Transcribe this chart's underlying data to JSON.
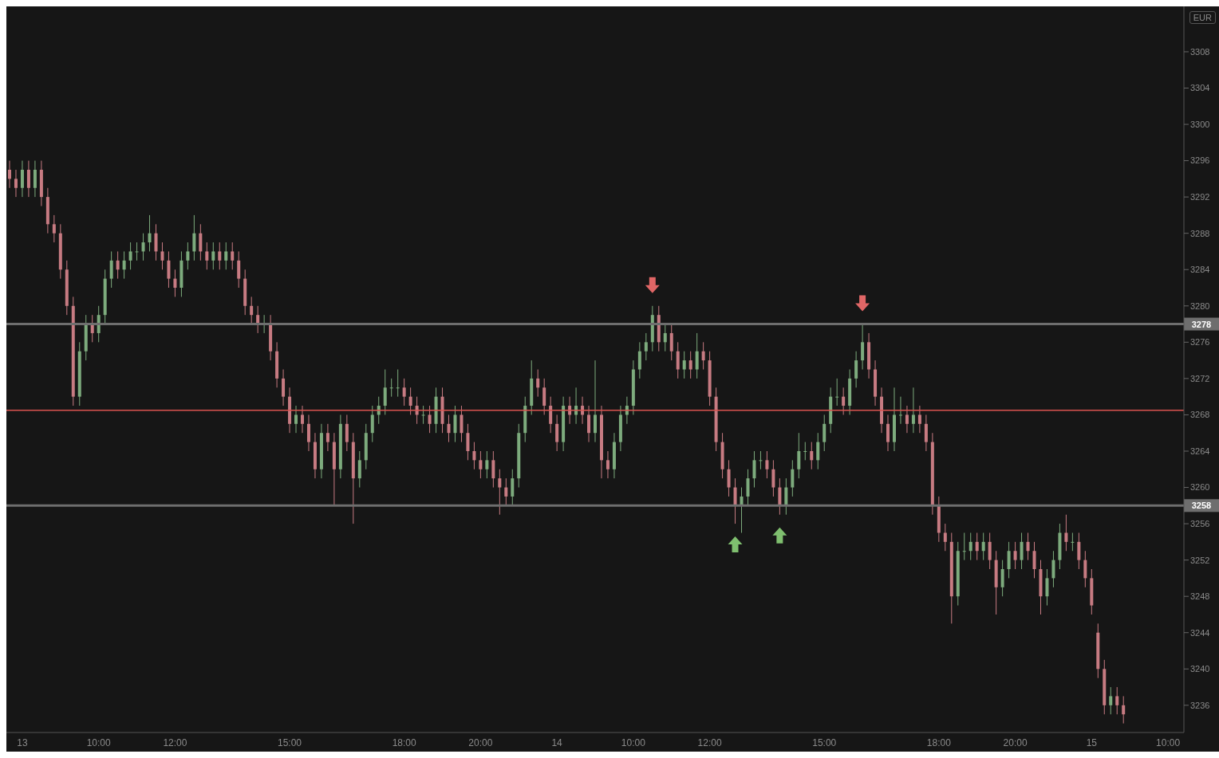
{
  "chart_data": {
    "type": "candlestick",
    "categories": [
      null,
      null,
      "13",
      null,
      null,
      null,
      null,
      null,
      null,
      null,
      null,
      null,
      null,
      null,
      "10:00",
      null,
      null,
      null,
      null,
      null,
      null,
      null,
      null,
      null,
      null,
      null,
      "12:00",
      null,
      null,
      null,
      null,
      null,
      null,
      null,
      null,
      null,
      null,
      null,
      null,
      null,
      null,
      null,
      null,
      null,
      "15:00",
      null,
      null,
      null,
      null,
      null,
      null,
      null,
      null,
      null,
      null,
      null,
      null,
      null,
      null,
      null,
      null,
      null,
      "18:00",
      null,
      null,
      null,
      null,
      null,
      null,
      null,
      null,
      null,
      null,
      null,
      "20:00",
      null,
      null,
      null,
      null,
      null,
      null,
      null,
      null,
      null,
      null,
      null,
      "14",
      null,
      null,
      null,
      null,
      null,
      null,
      null,
      null,
      null,
      null,
      null,
      "10:00",
      null,
      null,
      null,
      null,
      null,
      null,
      null,
      null,
      null,
      null,
      null,
      "12:00",
      null,
      null,
      null,
      null,
      null,
      null,
      null,
      null,
      null,
      null,
      null,
      null,
      null,
      null,
      null,
      null,
      null,
      "15:00",
      null,
      null,
      null,
      null,
      null,
      null,
      null,
      null,
      null,
      null,
      null,
      null,
      null,
      null,
      null,
      null,
      null,
      "18:00",
      null,
      null,
      null,
      null,
      null,
      null,
      null,
      null,
      null,
      null,
      null,
      "20:00",
      null,
      null,
      null,
      null,
      null,
      null,
      null,
      null,
      null,
      null,
      null,
      "15",
      null,
      null,
      null,
      null,
      null,
      null,
      null,
      null,
      null,
      null,
      null,
      "10:00",
      null,
      null
    ],
    "ohlc": [
      [
        3295,
        3296,
        3293,
        3294
      ],
      [
        3294,
        3295,
        3292,
        3293
      ],
      [
        3293,
        3296,
        3292,
        3295
      ],
      [
        3295,
        3296,
        3292,
        3293
      ],
      [
        3293,
        3296,
        3292,
        3295
      ],
      [
        3295,
        3296,
        3291,
        3292
      ],
      [
        3292,
        3293,
        3288,
        3289
      ],
      [
        3289,
        3290,
        3287,
        3288
      ],
      [
        3288,
        3289,
        3283,
        3284
      ],
      [
        3284,
        3285,
        3279,
        3280
      ],
      [
        3280,
        3281,
        3269,
        3270
      ],
      [
        3270,
        3276,
        3269,
        3275
      ],
      [
        3275,
        3279,
        3274,
        3278
      ],
      [
        3278,
        3279,
        3276,
        3277
      ],
      [
        3277,
        3280,
        3276,
        3279
      ],
      [
        3279,
        3284,
        3278,
        3283
      ],
      [
        3283,
        3286,
        3282,
        3285
      ],
      [
        3285,
        3286,
        3283,
        3284
      ],
      [
        3284,
        3286,
        3283,
        3285
      ],
      [
        3285,
        3287,
        3284,
        3286
      ],
      [
        3286,
        3287,
        3285,
        3286
      ],
      [
        3286,
        3288,
        3285,
        3287
      ],
      [
        3287,
        3290,
        3286,
        3288
      ],
      [
        3288,
        3289,
        3285,
        3286
      ],
      [
        3286,
        3287,
        3284,
        3285
      ],
      [
        3285,
        3286,
        3282,
        3283
      ],
      [
        3283,
        3284,
        3281,
        3282
      ],
      [
        3282,
        3286,
        3281,
        3285
      ],
      [
        3285,
        3287,
        3284,
        3286
      ],
      [
        3286,
        3290,
        3285,
        3288
      ],
      [
        3288,
        3289,
        3285,
        3286
      ],
      [
        3286,
        3287,
        3284,
        3285
      ],
      [
        3285,
        3287,
        3284,
        3286
      ],
      [
        3286,
        3287,
        3284,
        3285
      ],
      [
        3285,
        3287,
        3284,
        3286
      ],
      [
        3286,
        3287,
        3284,
        3285
      ],
      [
        3285,
        3286,
        3282,
        3283
      ],
      [
        3283,
        3284,
        3279,
        3280
      ],
      [
        3280,
        3281,
        3278,
        3279
      ],
      [
        3279,
        3280,
        3277,
        3278
      ],
      [
        3278,
        3279,
        3277,
        3278
      ],
      [
        3278,
        3279,
        3274,
        3275
      ],
      [
        3275,
        3276,
        3271,
        3272
      ],
      [
        3272,
        3273,
        3269,
        3270
      ],
      [
        3270,
        3271,
        3266,
        3267
      ],
      [
        3267,
        3269,
        3266,
        3268
      ],
      [
        3268,
        3269,
        3266,
        3267
      ],
      [
        3267,
        3268,
        3264,
        3265
      ],
      [
        3265,
        3266,
        3261,
        3262
      ],
      [
        3262,
        3267,
        3261,
        3266
      ],
      [
        3266,
        3267,
        3264,
        3265
      ],
      [
        3265,
        3266,
        3258,
        3262
      ],
      [
        3262,
        3268,
        3261,
        3267
      ],
      [
        3267,
        3268,
        3264,
        3265
      ],
      [
        3265,
        3266,
        3256,
        3261
      ],
      [
        3261,
        3264,
        3260,
        3263
      ],
      [
        3263,
        3267,
        3262,
        3266
      ],
      [
        3266,
        3269,
        3265,
        3268
      ],
      [
        3268,
        3270,
        3267,
        3269
      ],
      [
        3269,
        3273,
        3268,
        3271
      ],
      [
        3271,
        3272,
        3270,
        3271
      ],
      [
        3271,
        3273,
        3270,
        3271
      ],
      [
        3271,
        3272,
        3269,
        3270
      ],
      [
        3270,
        3271,
        3268,
        3269
      ],
      [
        3269,
        3270,
        3267,
        3268
      ],
      [
        3268,
        3269,
        3267,
        3268
      ],
      [
        3268,
        3269,
        3266,
        3267
      ],
      [
        3267,
        3271,
        3266,
        3270
      ],
      [
        3270,
        3271,
        3266,
        3267
      ],
      [
        3267,
        3268,
        3265,
        3266
      ],
      [
        3266,
        3269,
        3265,
        3268
      ],
      [
        3268,
        3269,
        3265,
        3266
      ],
      [
        3266,
        3267,
        3263,
        3264
      ],
      [
        3264,
        3265,
        3262,
        3263
      ],
      [
        3263,
        3264,
        3261,
        3262
      ],
      [
        3262,
        3264,
        3261,
        3263
      ],
      [
        3263,
        3264,
        3260,
        3261
      ],
      [
        3261,
        3262,
        3257,
        3260
      ],
      [
        3260,
        3261,
        3258,
        3259
      ],
      [
        3259,
        3262,
        3258,
        3261
      ],
      [
        3261,
        3267,
        3260,
        3266
      ],
      [
        3266,
        3270,
        3265,
        3269
      ],
      [
        3269,
        3274,
        3268,
        3272
      ],
      [
        3272,
        3273,
        3270,
        3271
      ],
      [
        3271,
        3272,
        3268,
        3269
      ],
      [
        3269,
        3270,
        3266,
        3267
      ],
      [
        3267,
        3268,
        3264,
        3265
      ],
      [
        3265,
        3270,
        3264,
        3269
      ],
      [
        3269,
        3270,
        3267,
        3268
      ],
      [
        3268,
        3271,
        3267,
        3269
      ],
      [
        3269,
        3270,
        3267,
        3268
      ],
      [
        3268,
        3269,
        3265,
        3266
      ],
      [
        3266,
        3274,
        3265,
        3268
      ],
      [
        3268,
        3269,
        3261,
        3263
      ],
      [
        3263,
        3264,
        3261,
        3262
      ],
      [
        3262,
        3266,
        3261,
        3265
      ],
      [
        3265,
        3269,
        3264,
        3268
      ],
      [
        3268,
        3270,
        3267,
        3269
      ],
      [
        3269,
        3274,
        3268,
        3273
      ],
      [
        3273,
        3276,
        3272,
        3275
      ],
      [
        3275,
        3277,
        3274,
        3276
      ],
      [
        3276,
        3280,
        3275,
        3279
      ],
      [
        3279,
        3280,
        3275,
        3276
      ],
      [
        3276,
        3278,
        3275,
        3277
      ],
      [
        3277,
        3278,
        3274,
        3275
      ],
      [
        3275,
        3276,
        3272,
        3273
      ],
      [
        3273,
        3275,
        3272,
        3274
      ],
      [
        3274,
        3275,
        3272,
        3273
      ],
      [
        3273,
        3277,
        3272,
        3275
      ],
      [
        3275,
        3276,
        3273,
        3274
      ],
      [
        3274,
        3275,
        3269,
        3270
      ],
      [
        3270,
        3271,
        3264,
        3265
      ],
      [
        3265,
        3266,
        3261,
        3262
      ],
      [
        3262,
        3263,
        3259,
        3260
      ],
      [
        3260,
        3261,
        3256,
        3258
      ],
      [
        3258,
        3260,
        3255,
        3259
      ],
      [
        3259,
        3262,
        3258,
        3261
      ],
      [
        3261,
        3264,
        3260,
        3263
      ],
      [
        3263,
        3264,
        3262,
        3263
      ],
      [
        3263,
        3264,
        3261,
        3262
      ],
      [
        3262,
        3263,
        3259,
        3260
      ],
      [
        3260,
        3261,
        3257,
        3258
      ],
      [
        3258,
        3261,
        3257,
        3260
      ],
      [
        3260,
        3263,
        3259,
        3262
      ],
      [
        3262,
        3266,
        3261,
        3264
      ],
      [
        3264,
        3265,
        3263,
        3264
      ],
      [
        3264,
        3265,
        3262,
        3263
      ],
      [
        3263,
        3266,
        3262,
        3265
      ],
      [
        3265,
        3268,
        3264,
        3267
      ],
      [
        3267,
        3271,
        3266,
        3270
      ],
      [
        3270,
        3272,
        3269,
        3270
      ],
      [
        3270,
        3271,
        3268,
        3269
      ],
      [
        3269,
        3273,
        3268,
        3272
      ],
      [
        3272,
        3275,
        3271,
        3274
      ],
      [
        3274,
        3278,
        3273,
        3276
      ],
      [
        3276,
        3277,
        3272,
        3273
      ],
      [
        3273,
        3274,
        3269,
        3270
      ],
      [
        3270,
        3271,
        3266,
        3267
      ],
      [
        3267,
        3268,
        3264,
        3265
      ],
      [
        3265,
        3271,
        3264,
        3268
      ],
      [
        3268,
        3270,
        3267,
        3268
      ],
      [
        3268,
        3269,
        3266,
        3267
      ],
      [
        3267,
        3271,
        3266,
        3268
      ],
      [
        3268,
        3269,
        3266,
        3267
      ],
      [
        3267,
        3268,
        3264,
        3265
      ],
      [
        3265,
        3266,
        3257,
        3258
      ],
      [
        3258,
        3259,
        3254,
        3255
      ],
      [
        3255,
        3256,
        3253,
        3254
      ],
      [
        3254,
        3255,
        3245,
        3248
      ],
      [
        3248,
        3254,
        3247,
        3253
      ],
      [
        3253,
        3255,
        3252,
        3253
      ],
      [
        3253,
        3255,
        3252,
        3254
      ],
      [
        3254,
        3255,
        3252,
        3253
      ],
      [
        3253,
        3255,
        3252,
        3254
      ],
      [
        3254,
        3255,
        3251,
        3252
      ],
      [
        3252,
        3253,
        3246,
        3249
      ],
      [
        3249,
        3252,
        3248,
        3251
      ],
      [
        3251,
        3254,
        3250,
        3253
      ],
      [
        3253,
        3254,
        3251,
        3252
      ],
      [
        3252,
        3255,
        3251,
        3254
      ],
      [
        3254,
        3255,
        3252,
        3253
      ],
      [
        3253,
        3254,
        3250,
        3251
      ],
      [
        3251,
        3252,
        3246,
        3248
      ],
      [
        3248,
        3251,
        3247,
        3250
      ],
      [
        3250,
        3253,
        3249,
        3252
      ],
      [
        3252,
        3256,
        3251,
        3255
      ],
      [
        3255,
        3257,
        3253,
        3254
      ],
      [
        3254,
        3255,
        3253,
        3254
      ],
      [
        3254,
        3255,
        3251,
        3252
      ],
      [
        3252,
        3253,
        3249,
        3250
      ],
      [
        3250,
        3251,
        3246,
        3247
      ],
      [
        3244,
        3245,
        3239,
        3240
      ],
      [
        3240,
        3241,
        3235,
        3236
      ],
      [
        3236,
        3238,
        3235,
        3237
      ],
      [
        3237,
        3238,
        3235,
        3236
      ],
      [
        3236,
        3237,
        3234,
        3235
      ],
      null,
      null,
      null,
      null,
      null,
      null,
      null,
      null,
      null
    ],
    "ylim": [
      3233,
      3313
    ],
    "yticks": [
      3236,
      3240,
      3244,
      3248,
      3252,
      3256,
      3260,
      3264,
      3268,
      3272,
      3276,
      3280,
      3284,
      3288,
      3292,
      3296,
      3300,
      3304,
      3308
    ],
    "ref_lines": [
      {
        "axis": "y",
        "value": 3278,
        "label": "3278",
        "color": "#6e6e6e"
      },
      {
        "axis": "y",
        "value": 3258,
        "label": "3258",
        "color": "#6e6e6e"
      },
      {
        "axis": "y",
        "value": 3268.5,
        "color": "#d9534f"
      }
    ],
    "annotations": [
      "EUR"
    ]
  }
}
